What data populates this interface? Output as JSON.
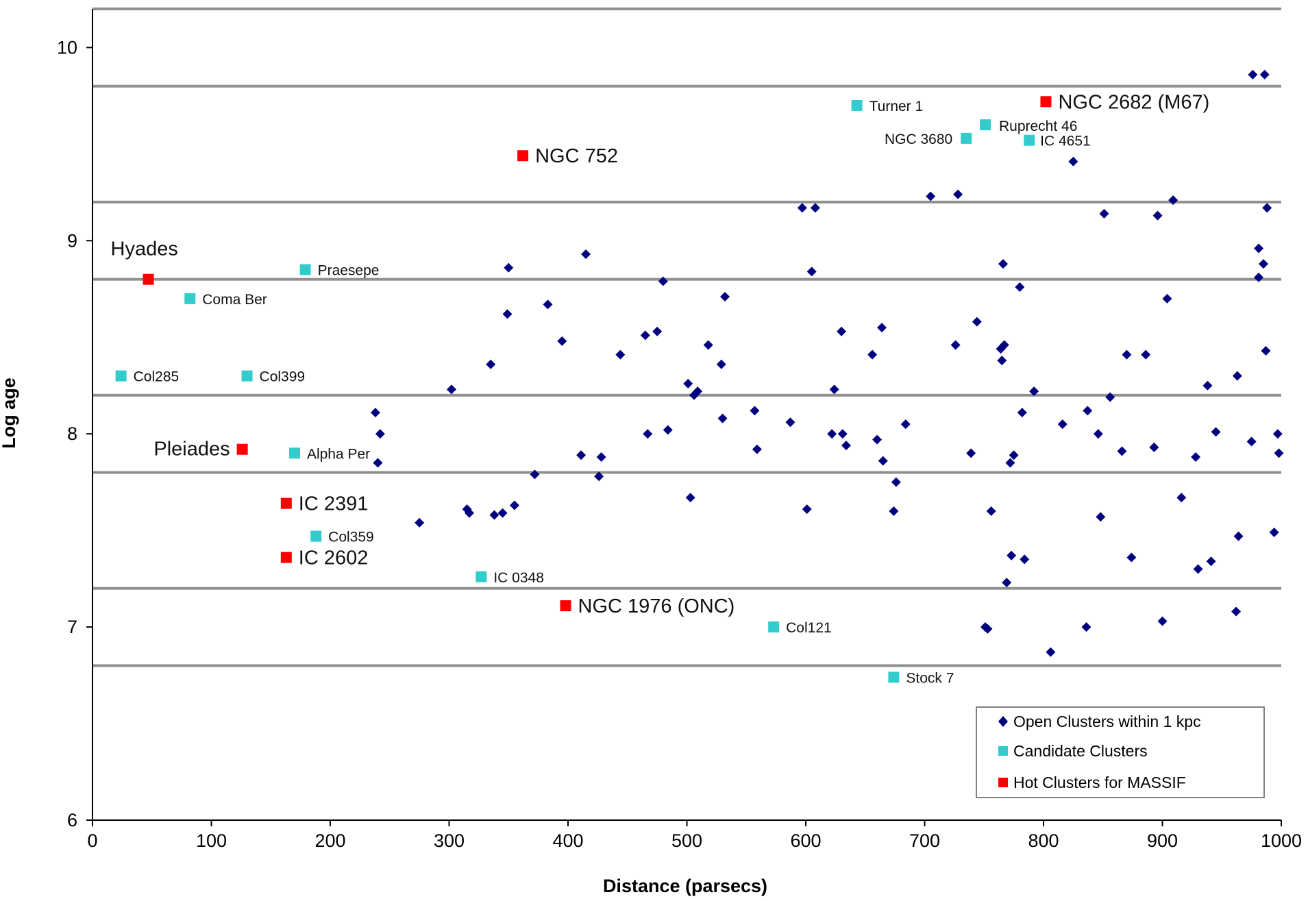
{
  "chart_data": {
    "type": "scatter",
    "title": "",
    "xlabel": "Distance (parsecs)",
    "ylabel": "Log age",
    "xlim": [
      0,
      1000
    ],
    "ylim": [
      6,
      10.2
    ],
    "x_ticks": [
      "0",
      "100",
      "200",
      "300",
      "400",
      "500",
      "600",
      "700",
      "800",
      "900",
      "1000"
    ],
    "y_ticks": [
      "6",
      "7",
      "8",
      "9",
      "10"
    ],
    "grid": "horizontal bands",
    "band_lines": [
      10.2,
      9.8,
      9.2,
      8.8,
      8.2,
      7.8,
      7.2,
      6.8
    ],
    "legend_position": "bottom-right",
    "colors": {
      "open": "#00007f",
      "candidate": "#33cccc",
      "hot": "#ff0000",
      "band": "#909090"
    },
    "series": [
      {
        "name": "Open Clusters within 1 kpc",
        "marker": "diamond",
        "points": [
          [
            238,
            8.11
          ],
          [
            242,
            8.0
          ],
          [
            240,
            7.85
          ],
          [
            275,
            7.54
          ],
          [
            302,
            8.23
          ],
          [
            315,
            7.61
          ],
          [
            317,
            7.59
          ],
          [
            335,
            8.36
          ],
          [
            338,
            7.58
          ],
          [
            345,
            7.59
          ],
          [
            349,
            8.62
          ],
          [
            350,
            8.86
          ],
          [
            355,
            7.63
          ],
          [
            372,
            7.79
          ],
          [
            383,
            8.67
          ],
          [
            395,
            8.48
          ],
          [
            411,
            7.89
          ],
          [
            415,
            8.93
          ],
          [
            428,
            7.88
          ],
          [
            426,
            7.78
          ],
          [
            444,
            8.41
          ],
          [
            465,
            8.51
          ],
          [
            467,
            8.0
          ],
          [
            475,
            8.53
          ],
          [
            480,
            8.79
          ],
          [
            484,
            8.02
          ],
          [
            501,
            8.26
          ],
          [
            503,
            7.67
          ],
          [
            506,
            8.2
          ],
          [
            509,
            8.22
          ],
          [
            518,
            8.46
          ],
          [
            529,
            8.36
          ],
          [
            530,
            8.08
          ],
          [
            532,
            8.71
          ],
          [
            557,
            8.12
          ],
          [
            559,
            7.92
          ],
          [
            587,
            8.06
          ],
          [
            597,
            9.17
          ],
          [
            601,
            7.61
          ],
          [
            605,
            8.84
          ],
          [
            608,
            9.17
          ],
          [
            622,
            8.0
          ],
          [
            624,
            8.23
          ],
          [
            630,
            8.53
          ],
          [
            631,
            8.0
          ],
          [
            634,
            7.94
          ],
          [
            656,
            8.41
          ],
          [
            660,
            7.97
          ],
          [
            664,
            8.55
          ],
          [
            665,
            7.86
          ],
          [
            674,
            7.6
          ],
          [
            676,
            7.75
          ],
          [
            684,
            8.05
          ],
          [
            705,
            9.23
          ],
          [
            726,
            8.46
          ],
          [
            728,
            9.24
          ],
          [
            739,
            7.9
          ],
          [
            744,
            8.58
          ],
          [
            751,
            7.0
          ],
          [
            753,
            6.99
          ],
          [
            756,
            7.6
          ],
          [
            764,
            8.44
          ],
          [
            765,
            8.38
          ],
          [
            766,
            8.88
          ],
          [
            767,
            8.46
          ],
          [
            772,
            7.85
          ],
          [
            773,
            7.37
          ],
          [
            775,
            7.89
          ],
          [
            780,
            8.76
          ],
          [
            782,
            8.11
          ],
          [
            784,
            7.35
          ],
          [
            769,
            7.23
          ],
          [
            792,
            8.22
          ],
          [
            806,
            6.87
          ],
          [
            816,
            8.05
          ],
          [
            825,
            9.41
          ],
          [
            836,
            7.0
          ],
          [
            837,
            8.12
          ],
          [
            846,
            8.0
          ],
          [
            848,
            7.57
          ],
          [
            851,
            9.14
          ],
          [
            856,
            8.19
          ],
          [
            866,
            7.91
          ],
          [
            870,
            8.41
          ],
          [
            874,
            7.36
          ],
          [
            886,
            8.41
          ],
          [
            893,
            7.93
          ],
          [
            896,
            9.13
          ],
          [
            900,
            7.03
          ],
          [
            904,
            8.7
          ],
          [
            909,
            9.21
          ],
          [
            916,
            7.67
          ],
          [
            928,
            7.88
          ],
          [
            930,
            7.3
          ],
          [
            938,
            8.25
          ],
          [
            941,
            7.34
          ],
          [
            945,
            8.01
          ],
          [
            962,
            7.08
          ],
          [
            963,
            8.3
          ],
          [
            964,
            7.47
          ],
          [
            975,
            7.96
          ],
          [
            976,
            9.86
          ],
          [
            981,
            8.81
          ],
          [
            981,
            8.96
          ],
          [
            985,
            8.88
          ],
          [
            986,
            9.86
          ],
          [
            987,
            8.43
          ],
          [
            988,
            9.17
          ],
          [
            994,
            7.49
          ],
          [
            997,
            8.0
          ],
          [
            998,
            7.9
          ]
        ]
      },
      {
        "name": "Candidate Clusters",
        "marker": "square",
        "points": [
          {
            "x": 643,
            "y": 9.7,
            "label": "Turner 1"
          },
          {
            "x": 751,
            "y": 9.6,
            "label": "Ruprecht 46"
          },
          {
            "x": 735,
            "y": 9.53,
            "label": "NGC 3680"
          },
          {
            "x": 788,
            "y": 9.52,
            "label": "IC 4651"
          },
          {
            "x": 179,
            "y": 8.85,
            "label": "Praesepe"
          },
          {
            "x": 82,
            "y": 8.7,
            "label": "Coma Ber"
          },
          {
            "x": 24,
            "y": 8.3,
            "label": "Col285"
          },
          {
            "x": 130,
            "y": 8.3,
            "label": "Col399"
          },
          {
            "x": 170,
            "y": 7.9,
            "label": "Alpha Per"
          },
          {
            "x": 188,
            "y": 7.47,
            "label": "Col359"
          },
          {
            "x": 327,
            "y": 7.26,
            "label": "IC 0348"
          },
          {
            "x": 573,
            "y": 7.0,
            "label": "Col121"
          },
          {
            "x": 674,
            "y": 6.74,
            "label": "Stock 7"
          }
        ]
      },
      {
        "name": "Hot Clusters for MASSIF",
        "marker": "square",
        "points": [
          {
            "x": 802,
            "y": 9.72,
            "label": "NGC 2682 (M67)"
          },
          {
            "x": 362,
            "y": 9.44,
            "label": "NGC 752"
          },
          {
            "x": 47,
            "y": 8.8,
            "label": "Hyades"
          },
          {
            "x": 126,
            "y": 7.92,
            "label": "Pleiades"
          },
          {
            "x": 163,
            "y": 7.64,
            "label": "IC 2391"
          },
          {
            "x": 163,
            "y": 7.36,
            "label": "IC 2602"
          },
          {
            "x": 398,
            "y": 7.11,
            "label": "NGC 1976 (ONC)"
          }
        ]
      }
    ]
  }
}
